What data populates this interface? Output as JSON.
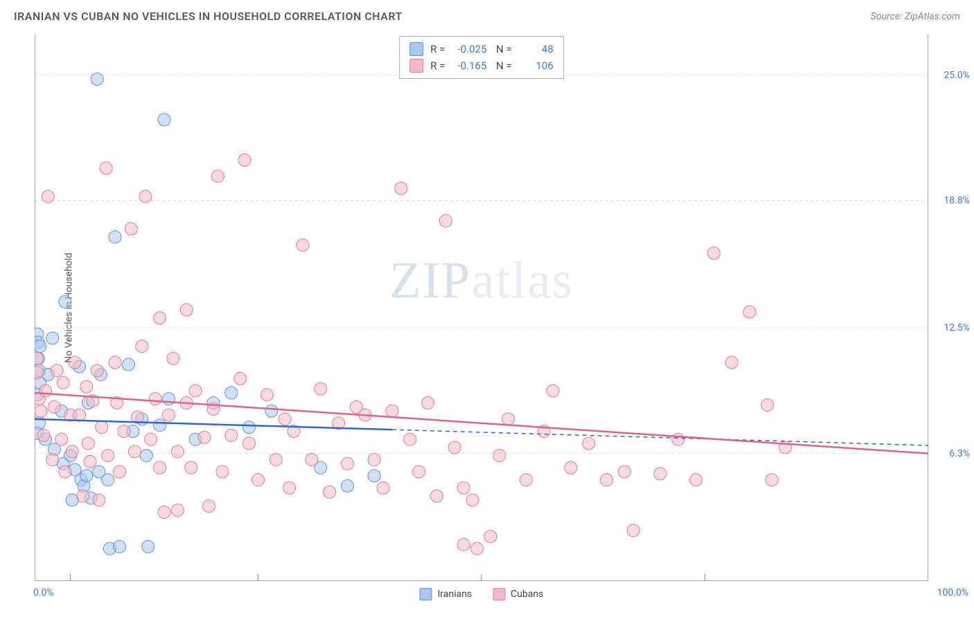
{
  "header": {
    "title": "IRANIAN VS CUBAN NO VEHICLES IN HOUSEHOLD CORRELATION CHART",
    "source": "Source: ZipAtlas.com"
  },
  "watermark": {
    "prefix": "ZIP",
    "suffix": "atlas"
  },
  "chart": {
    "type": "scatter",
    "ylabel": "No Vehicles in Household",
    "xlim": [
      0,
      100
    ],
    "ylim": [
      0,
      27
    ],
    "yticks": [
      {
        "v": 25.0,
        "label": "25.0%"
      },
      {
        "v": 18.8,
        "label": "18.8%"
      },
      {
        "v": 12.5,
        "label": "12.5%"
      },
      {
        "v": 6.3,
        "label": "6.3%"
      }
    ],
    "xticks": [
      {
        "v": 0,
        "label": "0.0%",
        "align": "left"
      },
      {
        "v": 100,
        "label": "100.0%",
        "align": "right"
      }
    ],
    "xgrid_majors": [
      4,
      25,
      50,
      75,
      100
    ],
    "background_color": "#ffffff",
    "grid_color": "#d9d9d9",
    "marker_radius": 9,
    "marker_opacity": 0.55,
    "stats": [
      {
        "color_fill": "#a8c7f0",
        "color_stroke": "#5c93de",
        "R": "-0.025",
        "N": "48"
      },
      {
        "color_fill": "#f5b9c5",
        "color_stroke": "#e27a93",
        "R": "-0.165",
        "N": "106"
      }
    ],
    "series": [
      {
        "name": "Iranians",
        "color_fill": "#a8c7f0",
        "color_stroke": "#5c93de",
        "trend": {
          "solid_to_x": 40,
          "y0": 8.0,
          "y1": 6.7,
          "line_color": "#2b67d6"
        },
        "points": [
          [
            0.3,
            12.2
          ],
          [
            0.4,
            11.8
          ],
          [
            0.6,
            11.6
          ],
          [
            0.4,
            11.0
          ],
          [
            0.5,
            10.4
          ],
          [
            0.6,
            9.8
          ],
          [
            0.3,
            9.2
          ],
          [
            0.5,
            7.8
          ],
          [
            0.3,
            7.3
          ],
          [
            1.5,
            10.2
          ],
          [
            1.2,
            7.0
          ],
          [
            2.0,
            12.0
          ],
          [
            2.2,
            6.5
          ],
          [
            3.0,
            8.4
          ],
          [
            3.2,
            5.8
          ],
          [
            3.4,
            13.8
          ],
          [
            4.0,
            6.2
          ],
          [
            4.5,
            5.5
          ],
          [
            4.2,
            4.0
          ],
          [
            5.0,
            10.6
          ],
          [
            5.2,
            5.0
          ],
          [
            5.5,
            4.7
          ],
          [
            5.8,
            5.2
          ],
          [
            6.0,
            8.8
          ],
          [
            6.3,
            4.1
          ],
          [
            7.0,
            24.8
          ],
          [
            7.2,
            5.4
          ],
          [
            7.4,
            10.2
          ],
          [
            8.4,
            1.6
          ],
          [
            8.2,
            5.0
          ],
          [
            9.0,
            17.0
          ],
          [
            9.5,
            1.7
          ],
          [
            10.5,
            10.7
          ],
          [
            11.0,
            7.4
          ],
          [
            12.0,
            8.0
          ],
          [
            12.5,
            6.2
          ],
          [
            12.7,
            1.7
          ],
          [
            14.0,
            7.7
          ],
          [
            14.5,
            22.8
          ],
          [
            15.0,
            9.0
          ],
          [
            18.0,
            7.0
          ],
          [
            20.0,
            8.8
          ],
          [
            22.0,
            9.3
          ],
          [
            24.0,
            7.6
          ],
          [
            26.5,
            8.4
          ],
          [
            32.0,
            5.6
          ],
          [
            35.0,
            4.7
          ],
          [
            38.0,
            5.2
          ]
        ]
      },
      {
        "name": "Cubans",
        "color_fill": "#f5b9c5",
        "color_stroke": "#e27a93",
        "trend": {
          "solid_to_x": 100,
          "y0": 9.3,
          "y1": 6.3,
          "line_color": "#e26284"
        },
        "points": [
          [
            0.3,
            11.0
          ],
          [
            0.3,
            10.3
          ],
          [
            0.5,
            9.0
          ],
          [
            0.7,
            8.4
          ],
          [
            1.0,
            7.2
          ],
          [
            1.2,
            9.4
          ],
          [
            1.5,
            19.0
          ],
          [
            2.0,
            6.0
          ],
          [
            2.2,
            8.6
          ],
          [
            2.5,
            10.4
          ],
          [
            3.0,
            7.0
          ],
          [
            3.2,
            9.8
          ],
          [
            3.4,
            5.4
          ],
          [
            4.0,
            8.2
          ],
          [
            4.2,
            6.4
          ],
          [
            4.5,
            10.8
          ],
          [
            5.0,
            8.2
          ],
          [
            5.4,
            4.2
          ],
          [
            5.8,
            9.6
          ],
          [
            6.0,
            6.8
          ],
          [
            6.2,
            5.9
          ],
          [
            6.5,
            8.9
          ],
          [
            7.0,
            10.4
          ],
          [
            7.2,
            4.0
          ],
          [
            7.5,
            7.6
          ],
          [
            8.0,
            20.4
          ],
          [
            8.2,
            6.2
          ],
          [
            9.0,
            10.8
          ],
          [
            9.2,
            8.8
          ],
          [
            9.5,
            5.4
          ],
          [
            10.0,
            7.4
          ],
          [
            10.8,
            17.4
          ],
          [
            11.2,
            6.4
          ],
          [
            11.5,
            8.1
          ],
          [
            12.0,
            11.6
          ],
          [
            12.4,
            19.0
          ],
          [
            13.0,
            7.0
          ],
          [
            13.5,
            9.0
          ],
          [
            14.0,
            5.6
          ],
          [
            14.0,
            13.0
          ],
          [
            14.5,
            3.4
          ],
          [
            15.0,
            8.2
          ],
          [
            15.5,
            11.0
          ],
          [
            16.0,
            6.4
          ],
          [
            16.0,
            3.5
          ],
          [
            17.0,
            8.8
          ],
          [
            17.0,
            13.4
          ],
          [
            17.5,
            5.6
          ],
          [
            18.0,
            9.4
          ],
          [
            19.0,
            7.1
          ],
          [
            19.5,
            3.7
          ],
          [
            20.0,
            8.5
          ],
          [
            20.5,
            20.0
          ],
          [
            21.0,
            5.4
          ],
          [
            22.0,
            7.2
          ],
          [
            23.0,
            10.0
          ],
          [
            23.5,
            20.8
          ],
          [
            24.0,
            6.8
          ],
          [
            25.0,
            5.0
          ],
          [
            26.0,
            9.2
          ],
          [
            27.0,
            6.0
          ],
          [
            28.0,
            8.0
          ],
          [
            28.5,
            4.6
          ],
          [
            29.0,
            7.4
          ],
          [
            30.0,
            16.6
          ],
          [
            31.0,
            6.0
          ],
          [
            32.0,
            9.5
          ],
          [
            33.0,
            4.4
          ],
          [
            34.0,
            7.8
          ],
          [
            35.0,
            5.8
          ],
          [
            36.0,
            8.6
          ],
          [
            37.0,
            8.2
          ],
          [
            38.0,
            6.0
          ],
          [
            39.0,
            4.6
          ],
          [
            40.0,
            8.4
          ],
          [
            41.0,
            19.4
          ],
          [
            42.0,
            7.0
          ],
          [
            43.0,
            5.4
          ],
          [
            44.0,
            8.8
          ],
          [
            45.0,
            4.2
          ],
          [
            46.0,
            17.8
          ],
          [
            47.0,
            6.6
          ],
          [
            48.0,
            4.6
          ],
          [
            48.0,
            1.8
          ],
          [
            49.0,
            4.0
          ],
          [
            49.5,
            1.6
          ],
          [
            51.0,
            2.2
          ],
          [
            52.0,
            6.2
          ],
          [
            53.0,
            8.0
          ],
          [
            55.0,
            5.0
          ],
          [
            57.0,
            7.4
          ],
          [
            58.0,
            9.4
          ],
          [
            60.0,
            5.6
          ],
          [
            62.0,
            6.8
          ],
          [
            64.0,
            5.0
          ],
          [
            66.0,
            5.4
          ],
          [
            67.0,
            2.5
          ],
          [
            70.0,
            5.3
          ],
          [
            72.0,
            7.0
          ],
          [
            74.0,
            5.0
          ],
          [
            76.0,
            16.2
          ],
          [
            78.0,
            10.8
          ],
          [
            80.0,
            13.3
          ],
          [
            82.0,
            8.7
          ],
          [
            82.5,
            5.0
          ],
          [
            84.0,
            6.6
          ]
        ]
      }
    ]
  },
  "bottom_legend": [
    {
      "label": "Iranians",
      "fill": "#a8c7f0",
      "stroke": "#5c93de"
    },
    {
      "label": "Cubans",
      "fill": "#f5b9c5",
      "stroke": "#e27a93"
    }
  ]
}
